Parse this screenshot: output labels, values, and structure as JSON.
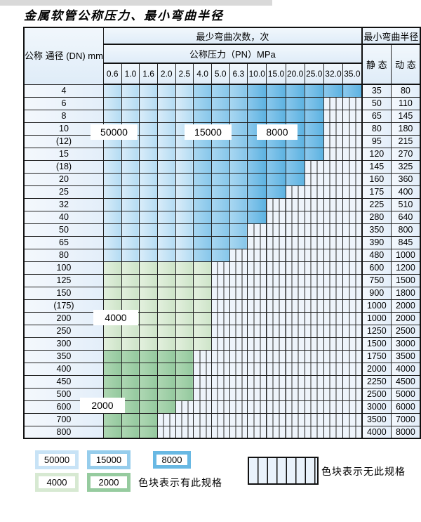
{
  "title": "金属软管公称压力、最小弯曲半径",
  "table": {
    "header": {
      "dn_label": "公称\n通径\n(DN)\nmm",
      "bend_cycles_label": "最少弯曲次数，次",
      "pressure_label": "公称压力（PN）MPa",
      "radius_label": "最小弯曲半径",
      "static_label": "静 态",
      "dynamic_label": "动 态",
      "pressures": [
        "0.6",
        "1.0",
        "1.6",
        "2.0",
        "2.5",
        "4.0",
        "5.0",
        "6.3",
        "10.0",
        "15.0",
        "20.0",
        "25.0",
        "32.0",
        "35.0"
      ]
    }
  },
  "overlay_labels": [
    "50000",
    "15000",
    "8000",
    "4000",
    "2000"
  ],
  "legend": {
    "has_spec_text": "色块表示有此规格",
    "no_spec_text": "色块表示无此规格",
    "swatches": [
      {
        "label": "50000",
        "color": "#c8e3f6"
      },
      {
        "label": "15000",
        "color": "#96cdec"
      },
      {
        "label": "8000",
        "color": "#68b8e3"
      },
      {
        "label": "4000",
        "color": "#d7e9d2"
      },
      {
        "label": "2000",
        "color": "#96cb9f"
      }
    ]
  },
  "colors": {
    "cycles_50000": "#c8e3f6",
    "cycles_15000": "#96cdec",
    "cycles_8000": "#68b8e3",
    "cycles_4000": "#d7e9d2",
    "cycles_2000": "#96cb9f",
    "no_spec_bg": "#eef4fb",
    "grid_line": "#222222"
  },
  "chart_data": {
    "type": "table",
    "title": "金属软管公称压力、最小弯曲半径",
    "pn_columns_mpa": [
      0.6,
      1.0,
      1.6,
      2.0,
      2.5,
      4.0,
      5.0,
      6.3,
      10.0,
      15.0,
      20.0,
      25.0,
      32.0,
      35.0
    ],
    "bend_cycle_color_zones": [
      {
        "cycles": 50000,
        "pn_columns_mpa": [
          0.6,
          1.0,
          1.6,
          2.0,
          2.5
        ],
        "dn_rows": "4-80"
      },
      {
        "cycles": 15000,
        "pn_columns_mpa": [
          4.0,
          5.0,
          6.3
        ],
        "dn_rows": "4-80"
      },
      {
        "cycles": 8000,
        "pn_columns_mpa": [
          10.0,
          15.0,
          20.0,
          25.0,
          32.0,
          35.0
        ],
        "dn_rows": "4-25 where available"
      },
      {
        "cycles": 4000,
        "pn_columns_mpa": [
          0.6,
          1.0,
          1.6,
          2.0,
          2.5,
          4.0
        ],
        "dn_rows": "100-300"
      },
      {
        "cycles": 2000,
        "pn_columns_mpa": [
          0.6,
          1.0,
          1.6,
          2.0,
          2.5
        ],
        "dn_rows": "350-800 where available"
      }
    ],
    "legend_note_has": "色块表示有此规格",
    "legend_note_no": "色块表示无此规格",
    "rows": [
      {
        "dn": "4",
        "zone": "blue",
        "max_pn": 35.0,
        "static": "35",
        "dynamic": "80"
      },
      {
        "dn": "6",
        "zone": "blue",
        "max_pn": 25.0,
        "static": "50",
        "dynamic": "110"
      },
      {
        "dn": "8",
        "zone": "blue",
        "max_pn": 25.0,
        "static": "65",
        "dynamic": "145"
      },
      {
        "dn": "10",
        "zone": "blue",
        "max_pn": 25.0,
        "static": "80",
        "dynamic": "180"
      },
      {
        "dn": "(12)",
        "zone": "blue",
        "max_pn": 25.0,
        "static": "95",
        "dynamic": "215"
      },
      {
        "dn": "15",
        "zone": "blue",
        "max_pn": 25.0,
        "static": "120",
        "dynamic": "270"
      },
      {
        "dn": "(18)",
        "zone": "blue",
        "max_pn": 20.0,
        "static": "145",
        "dynamic": "325"
      },
      {
        "dn": "20",
        "zone": "blue",
        "max_pn": 20.0,
        "static": "160",
        "dynamic": "360"
      },
      {
        "dn": "25",
        "zone": "blue",
        "max_pn": 15.0,
        "static": "175",
        "dynamic": "400"
      },
      {
        "dn": "32",
        "zone": "blue",
        "max_pn": 10.0,
        "static": "225",
        "dynamic": "510"
      },
      {
        "dn": "40",
        "zone": "blue",
        "max_pn": 10.0,
        "static": "280",
        "dynamic": "640"
      },
      {
        "dn": "50",
        "zone": "blue",
        "max_pn": 6.3,
        "static": "350",
        "dynamic": "800"
      },
      {
        "dn": "65",
        "zone": "blue",
        "max_pn": 6.3,
        "static": "390",
        "dynamic": "845"
      },
      {
        "dn": "80",
        "zone": "blue",
        "max_pn": 5.0,
        "static": "480",
        "dynamic": "1000"
      },
      {
        "dn": "100",
        "zone": "4000",
        "max_pn": 4.0,
        "static": "600",
        "dynamic": "1200"
      },
      {
        "dn": "125",
        "zone": "4000",
        "max_pn": 4.0,
        "static": "750",
        "dynamic": "1500"
      },
      {
        "dn": "150",
        "zone": "4000",
        "max_pn": 4.0,
        "static": "900",
        "dynamic": "1800"
      },
      {
        "dn": "(175)",
        "zone": "4000",
        "max_pn": 4.0,
        "static": "1000",
        "dynamic": "2000"
      },
      {
        "dn": "200",
        "zone": "4000",
        "max_pn": 4.0,
        "static": "1000",
        "dynamic": "2000"
      },
      {
        "dn": "250",
        "zone": "4000",
        "max_pn": 4.0,
        "static": "1250",
        "dynamic": "2500"
      },
      {
        "dn": "300",
        "zone": "4000",
        "max_pn": 4.0,
        "static": "1500",
        "dynamic": "3000"
      },
      {
        "dn": "350",
        "zone": "2000",
        "max_pn": 2.5,
        "static": "1750",
        "dynamic": "3500"
      },
      {
        "dn": "400",
        "zone": "2000",
        "max_pn": 2.5,
        "static": "2000",
        "dynamic": "4000"
      },
      {
        "dn": "450",
        "zone": "2000",
        "max_pn": 2.5,
        "static": "2250",
        "dynamic": "4500"
      },
      {
        "dn": "500",
        "zone": "2000",
        "max_pn": 2.5,
        "static": "2500",
        "dynamic": "5000"
      },
      {
        "dn": "600",
        "zone": "2000",
        "max_pn": 2.0,
        "static": "3000",
        "dynamic": "6000"
      },
      {
        "dn": "700",
        "zone": "2000",
        "max_pn": 1.6,
        "static": "3500",
        "dynamic": "7000"
      },
      {
        "dn": "800",
        "zone": "2000",
        "max_pn": 1.6,
        "static": "4000",
        "dynamic": "8000"
      }
    ]
  }
}
